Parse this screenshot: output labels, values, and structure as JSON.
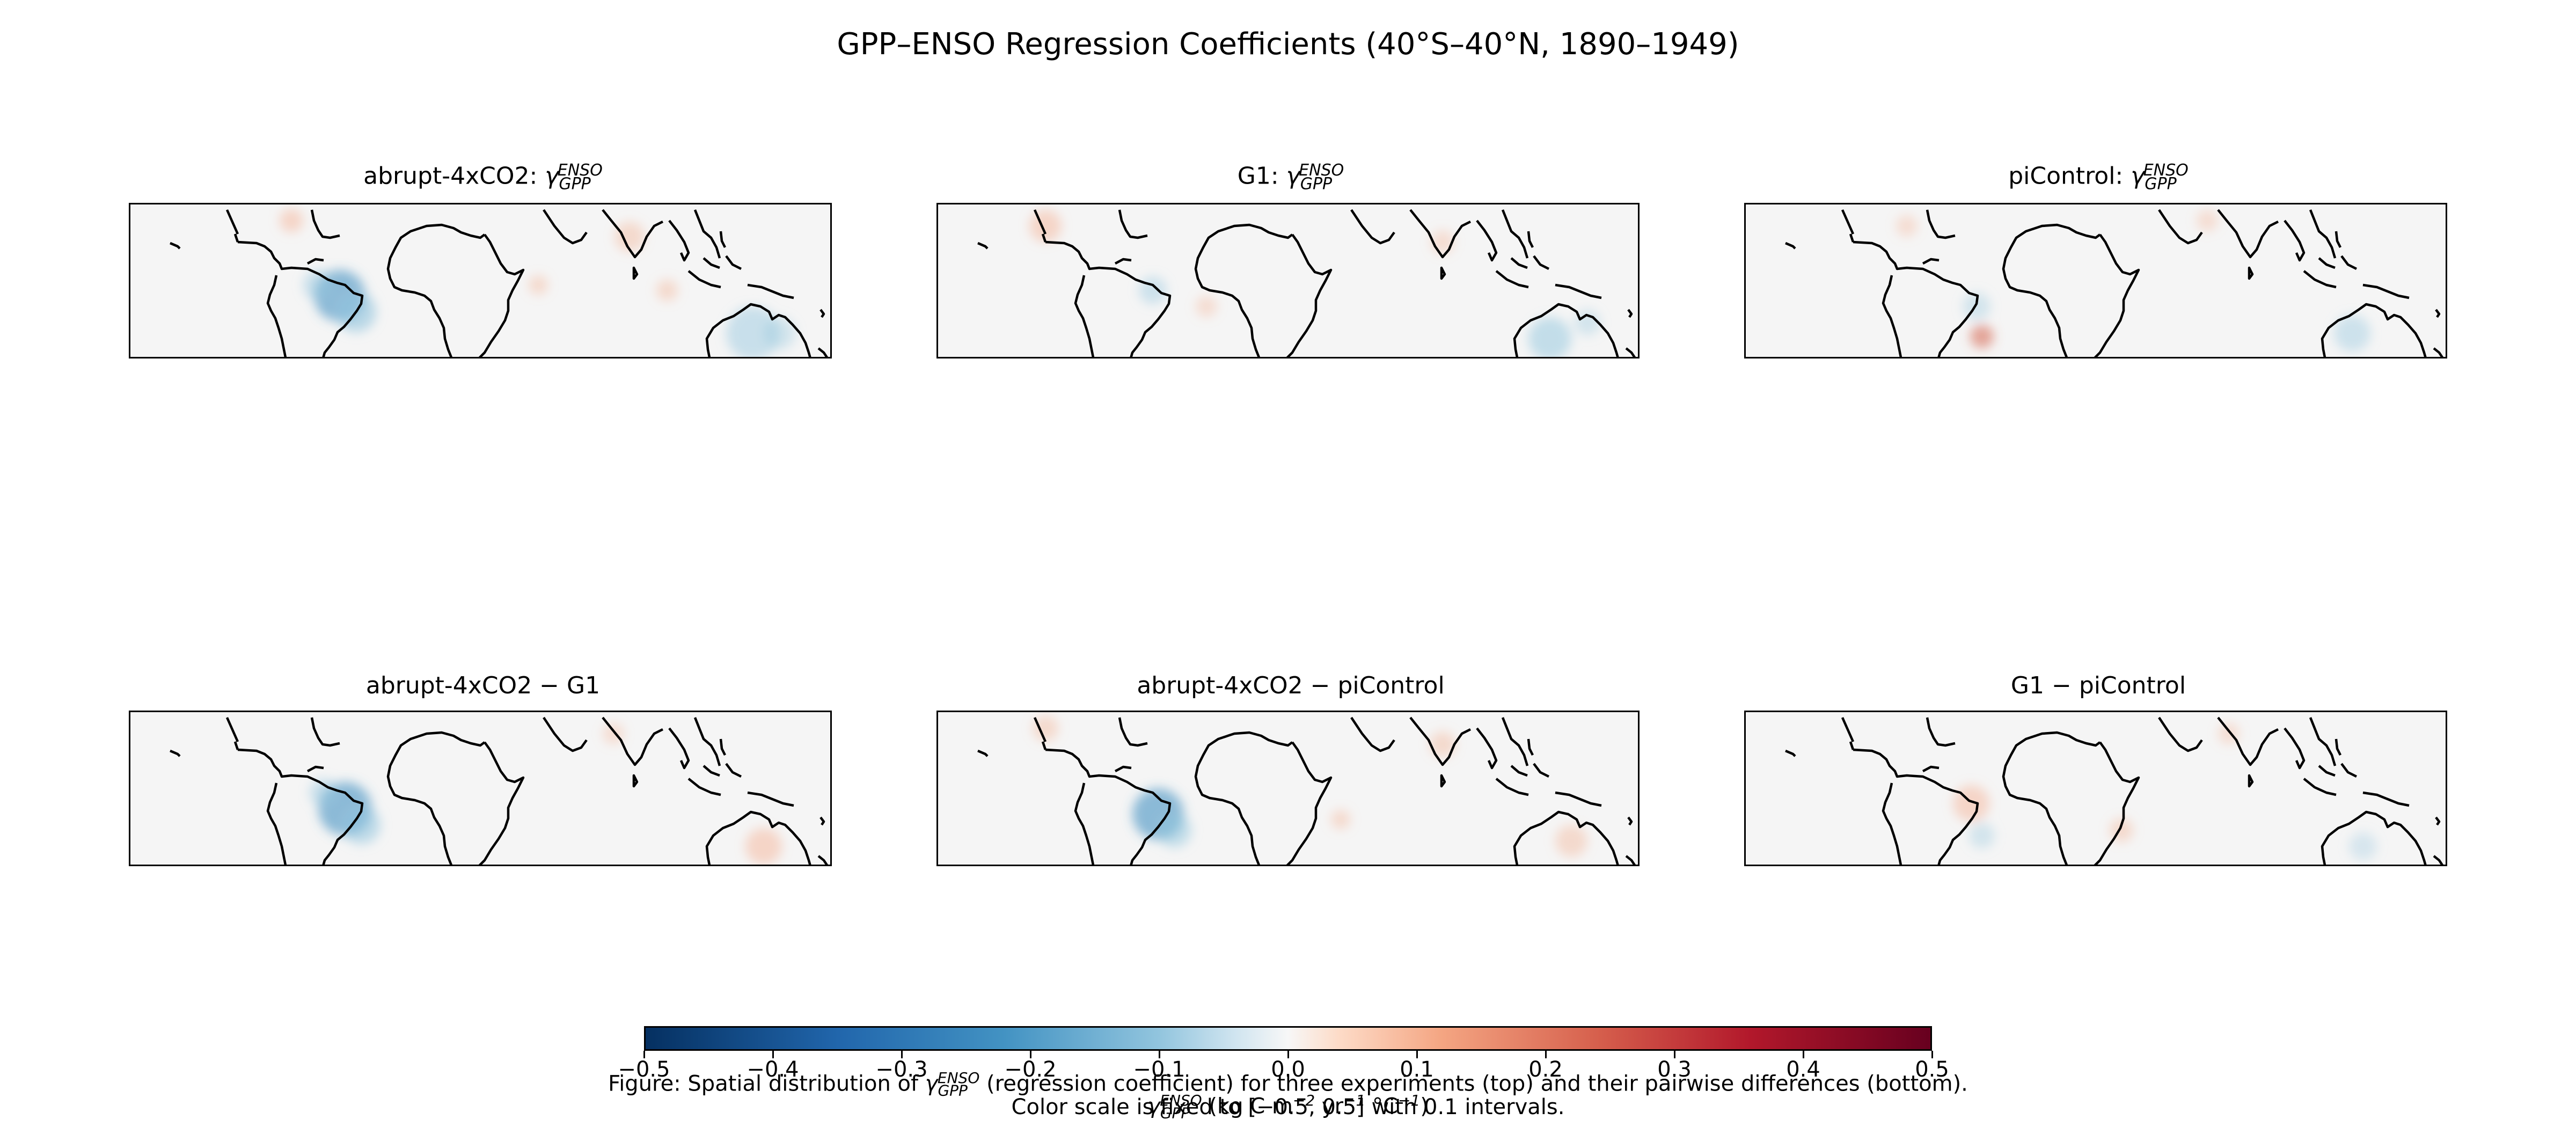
{
  "figure": {
    "suptitle": "GPP–ENSO Regression Coefficients (40°S–40°N, 1890–1949)",
    "panels": [
      {
        "title_prefix": "abrupt-4xCO2: ",
        "gamma_label": true
      },
      {
        "title_prefix": "G1: ",
        "gamma_label": true
      },
      {
        "title_prefix": "piControl: ",
        "gamma_label": true
      },
      {
        "title_prefix": "abrupt-4xCO2 − G1",
        "gamma_label": false
      },
      {
        "title_prefix": "abrupt-4xCO2 − piControl",
        "gamma_label": false
      },
      {
        "title_prefix": "G1 − piControl",
        "gamma_label": false
      }
    ],
    "gamma": {
      "symbol": "γ",
      "sub": "GPP",
      "sup": "ENSO"
    },
    "region": {
      "lat_range": [
        "40°S",
        "40°N"
      ],
      "lon_range_deg": [
        -120,
        155
      ]
    },
    "colorbar": {
      "cmap": "RdBu_r",
      "vmin": -0.5,
      "vmax": 0.5,
      "ticks": [
        "−0.5",
        "−0.4",
        "−0.3",
        "−0.2",
        "−0.1",
        "0.0",
        "0.1",
        "0.2",
        "0.3",
        "0.4",
        "0.5"
      ],
      "label_units": "(kg C m",
      "label_exp1": "−2",
      "label_mid": " yr",
      "label_exp2": "−1",
      "label_end": " °C",
      "label_exp3": "−1",
      "label_close": ")"
    },
    "caption": {
      "line1_a": "Figure: Spatial distribution of ",
      "line1_b": " (regression coefficient) for three experiments (top) and their pairwise differences (bottom).",
      "line2": "Color scale is fixed to [−0.5, 0.5] with 0.1 intervals."
    },
    "colors": {
      "negative": "#2166ac",
      "positive": "#d6604d",
      "neutral": "#f7f7f7"
    }
  }
}
